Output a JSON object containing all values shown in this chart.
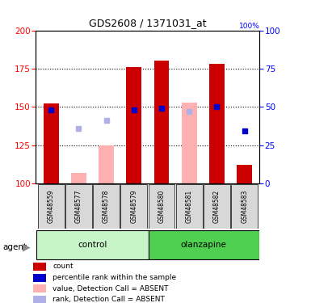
{
  "title": "GDS2608 / 1371031_at",
  "samples": [
    "GSM48559",
    "GSM48577",
    "GSM48578",
    "GSM48579",
    "GSM48580",
    "GSM48581",
    "GSM48582",
    "GSM48583"
  ],
  "ylim": [
    100,
    200
  ],
  "yticks_left": [
    100,
    125,
    150,
    175,
    200
  ],
  "yticks_right": [
    0,
    25,
    50,
    75,
    100
  ],
  "red_bars": [
    152,
    null,
    null,
    176,
    180,
    null,
    178,
    112
  ],
  "pink_bars": [
    null,
    107,
    125,
    null,
    null,
    153,
    null,
    null
  ],
  "blue_squares": [
    148,
    null,
    null,
    148,
    149,
    null,
    150,
    134
  ],
  "light_blue_squares": [
    null,
    136,
    141,
    null,
    null,
    147,
    null,
    null
  ],
  "red_color": "#cc0000",
  "pink_color": "#ffb0b0",
  "blue_color": "#0000cc",
  "light_blue_color": "#b0b0e8",
  "bar_width": 0.55,
  "bar_base": 100,
  "control_color": "#c8f5c8",
  "olanzapine_color": "#50d050",
  "grid_yticks": [
    125,
    150,
    175
  ],
  "legend_items": [
    {
      "color": "#cc0000",
      "label": "count"
    },
    {
      "color": "#0000cc",
      "label": "percentile rank within the sample"
    },
    {
      "color": "#ffb0b0",
      "label": "value, Detection Call = ABSENT"
    },
    {
      "color": "#b0b0e8",
      "label": "rank, Detection Call = ABSENT"
    }
  ]
}
